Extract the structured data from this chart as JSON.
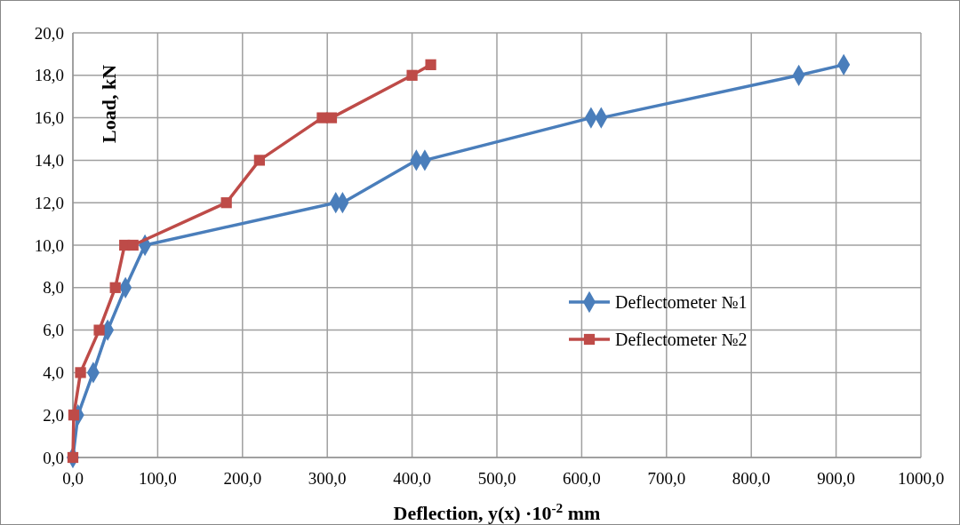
{
  "chart_data": {
    "type": "line",
    "xlabel": "Deflection, y(x) ·10$^{-2}$ mm",
    "ylabel": "Load, kN",
    "xlim": [
      0,
      1000
    ],
    "ylim": [
      0,
      20
    ],
    "xticks": [
      {
        "value": 0,
        "label": "0,0"
      },
      {
        "value": 100,
        "label": "100,0"
      },
      {
        "value": 200,
        "label": "200,0"
      },
      {
        "value": 300,
        "label": "300,0"
      },
      {
        "value": 400,
        "label": "400,0"
      },
      {
        "value": 500,
        "label": "500,0"
      },
      {
        "value": 600,
        "label": "600,0"
      },
      {
        "value": 700,
        "label": "700,0"
      },
      {
        "value": 800,
        "label": "800,0"
      },
      {
        "value": 900,
        "label": "900,0"
      },
      {
        "value": 1000,
        "label": "1000,0"
      }
    ],
    "yticks": [
      {
        "value": 0,
        "label": "0,0"
      },
      {
        "value": 2,
        "label": "2,0"
      },
      {
        "value": 4,
        "label": "4,0"
      },
      {
        "value": 6,
        "label": "6,0"
      },
      {
        "value": 8,
        "label": "8,0"
      },
      {
        "value": 10,
        "label": "10,0"
      },
      {
        "value": 12,
        "label": "12,0"
      },
      {
        "value": 14,
        "label": "14,0"
      },
      {
        "value": 16,
        "label": "16,0"
      },
      {
        "value": 18,
        "label": "18,0"
      },
      {
        "value": 20,
        "label": "20,0"
      }
    ],
    "grid": true,
    "legend": "right",
    "series": [
      {
        "name": "Deflectometer №1",
        "color": "#4a7ebb",
        "marker": "diamond",
        "x": [
          0,
          6,
          24,
          41,
          62,
          85,
          310,
          318,
          405,
          415,
          611,
          623,
          856,
          909
        ],
        "values": [
          0,
          2,
          4,
          6,
          8,
          10,
          12,
          12,
          14,
          14,
          16,
          16,
          18,
          18.5
        ]
      },
      {
        "name": "Deflectometer №2",
        "color": "#be4b48",
        "marker": "square",
        "x": [
          0,
          1,
          9,
          31,
          50,
          61,
          71,
          181,
          220,
          294,
          305,
          400,
          422
        ],
        "values": [
          0,
          2,
          4,
          6,
          8,
          10,
          10,
          12,
          14,
          16,
          16,
          18,
          18.5
        ]
      }
    ]
  }
}
